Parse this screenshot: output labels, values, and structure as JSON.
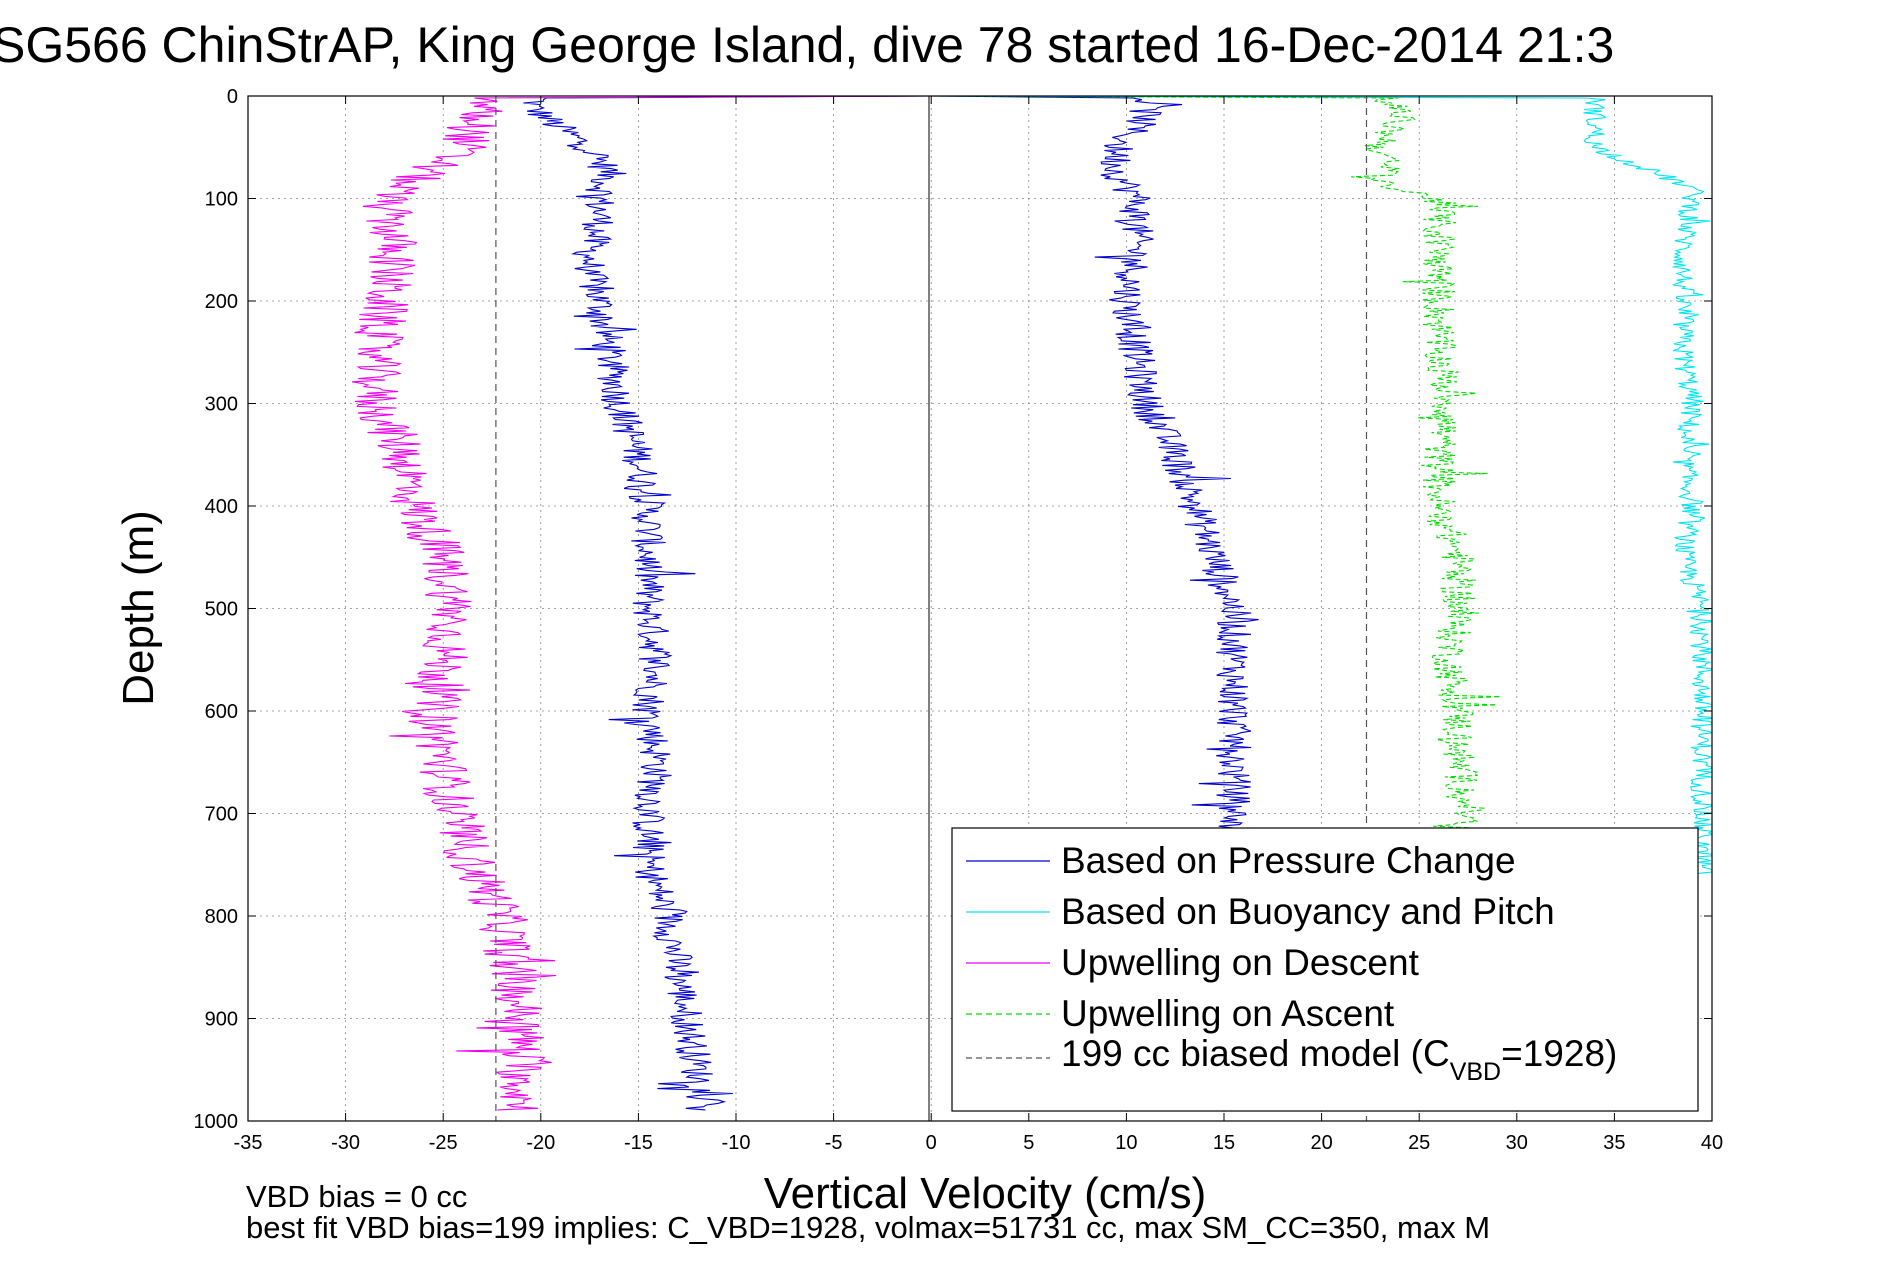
{
  "chart_data": {
    "type": "line",
    "title": "SG566 ChinStrAP, King George Island, dive 78 started 16-Dec-2014 21:3",
    "xlabel": "Vertical Velocity (cm/s)",
    "ylabel": "Depth (m)",
    "xlim": [
      -35,
      40
    ],
    "ylim": [
      0,
      1000
    ],
    "y_reversed": true,
    "grid": true,
    "x_ticks": [
      -35,
      -30,
      -25,
      -20,
      -15,
      -10,
      -5,
      0,
      5,
      10,
      15,
      20,
      25,
      30,
      35,
      40
    ],
    "y_ticks": [
      0,
      100,
      200,
      300,
      400,
      500,
      600,
      700,
      800,
      900,
      1000
    ],
    "legend_position": "bottom-right",
    "legend": [
      {
        "label": "Based on Pressure Change",
        "color": "#0000cc",
        "style": "solid"
      },
      {
        "label": "Based on Buoyancy and Pitch",
        "color": "#00e5ee",
        "style": "solid"
      },
      {
        "label": "Upwelling on Descent",
        "color": "#ee00ee",
        "style": "solid"
      },
      {
        "label": "Upwelling on Ascent",
        "color": "#00dd00",
        "style": "dashed"
      },
      {
        "label_main": "199 cc biased model (C",
        "label_sub": "VBD",
        "label_tail": "=1928)",
        "color": "#555555",
        "style": "dashed"
      }
    ],
    "series": [
      {
        "name": "Based on Pressure Change",
        "color": "#0000cc",
        "style": "solid",
        "descent": {
          "depth": [
            0,
            2,
            10,
            25,
            50,
            75,
            100,
            125,
            150,
            175,
            200,
            250,
            300,
            350,
            400,
            450,
            500,
            550,
            600,
            650,
            700,
            750,
            800,
            850,
            900,
            950,
            990
          ],
          "velocity": [
            0,
            -20,
            -20.5,
            -19.5,
            -17.5,
            -16.5,
            -17,
            -17,
            -17.5,
            -17.5,
            -17,
            -16.5,
            -16,
            -15,
            -14.5,
            -14.5,
            -14.5,
            -14,
            -14.5,
            -14,
            -14.5,
            -14.5,
            -13.5,
            -13,
            -12.5,
            -12,
            -11.5
          ],
          "noise": 0.9
        },
        "ascent": {
          "depth": [
            0,
            2,
            20,
            50,
            75,
            100,
            150,
            200,
            250,
            300,
            350,
            400,
            450,
            500,
            550,
            600,
            650,
            700,
            720
          ],
          "velocity": [
            0,
            11,
            11,
            9.5,
            9.5,
            10.5,
            10.5,
            10,
            10.5,
            11,
            12.5,
            13.5,
            14.5,
            15.5,
            15.5,
            15.5,
            15.5,
            15.5,
            15.5
          ],
          "noise": 0.9
        }
      },
      {
        "name": "Based on Buoyancy and Pitch",
        "color": "#00e5ee",
        "style": "solid",
        "ascent": {
          "depth": [
            0,
            2,
            20,
            50,
            90,
            100,
            150,
            200,
            250,
            300,
            350,
            400,
            450,
            500,
            550,
            600,
            650,
            700,
            760
          ],
          "velocity": [
            0,
            34,
            34,
            34,
            39,
            39,
            38.5,
            38.5,
            38.5,
            39,
            38.5,
            39,
            38.5,
            39.5,
            39.5,
            39.5,
            39.5,
            39.5,
            39.5
          ],
          "noise": 0.6
        }
      },
      {
        "name": "Upwelling on Descent",
        "color": "#ee00ee",
        "style": "solid",
        "descent": {
          "depth": [
            0,
            2,
            10,
            50,
            100,
            150,
            200,
            250,
            300,
            350,
            400,
            450,
            500,
            550,
            600,
            650,
            700,
            750,
            800,
            850,
            900,
            950,
            990
          ],
          "velocity": [
            0,
            -23,
            -23,
            -24,
            -28,
            -27.5,
            -28,
            -28.5,
            -28.5,
            -27,
            -26.5,
            -25,
            -24.5,
            -25,
            -25.5,
            -25,
            -24.5,
            -23.5,
            -22,
            -21.5,
            -21,
            -21,
            -21
          ],
          "noise": 1.3
        }
      },
      {
        "name": "Upwelling on Ascent",
        "color": "#00dd00",
        "style": "dashed",
        "ascent": {
          "depth": [
            0,
            2,
            20,
            50,
            90,
            100,
            150,
            200,
            250,
            300,
            350,
            400,
            450,
            500,
            550,
            600,
            650,
            700,
            990
          ],
          "velocity": [
            0,
            23.5,
            24,
            23,
            23.5,
            26,
            26,
            26,
            26,
            26.5,
            26,
            26,
            27,
            27,
            26.5,
            27,
            27,
            27.5,
            22
          ],
          "noise": 0.9
        }
      },
      {
        "name": "199 cc biased model (C_VBD=1928)",
        "color": "#555555",
        "style": "dashed",
        "vertical_lines_at": [
          -22.3,
          22.3
        ]
      }
    ],
    "annotations": [
      "VBD bias = 0 cc",
      "best fit VBD bias=199 implies: C_VBD=1928, volmax=51731 cc, max SM_CC=350, max M"
    ]
  }
}
